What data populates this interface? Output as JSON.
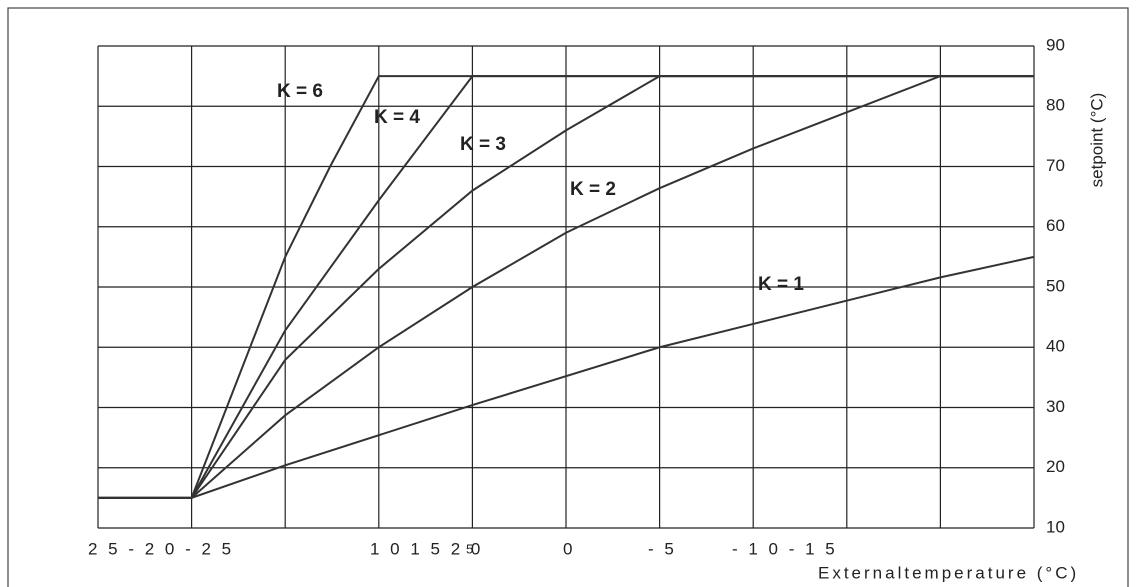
{
  "chart_data": {
    "type": "line",
    "x_label": "Externaltemperature (°C)",
    "y_label": "setpoint (°C)",
    "xlim": [
      25,
      -25
    ],
    "ylim": [
      10,
      90
    ],
    "xticks": [
      25,
      20,
      15,
      10,
      5,
      0,
      -5,
      -10,
      -15,
      -20,
      -25
    ],
    "yticks": [
      10,
      20,
      30,
      40,
      50,
      60,
      70,
      80,
      90
    ],
    "x_tick_texts": [
      "2 5 - 2 0 - 2 5",
      "1 0 1 5 2 0",
      "5",
      "0",
      "- 5",
      "- 1 0 - 1 5"
    ],
    "grid": true,
    "series": [
      {
        "name": "K = 1",
        "color": "#333333",
        "x": [
          25,
          20,
          15,
          5,
          -5,
          -20,
          -25
        ],
        "values": [
          15,
          15,
          20.4,
          30.4,
          40,
          51.6,
          55
        ]
      },
      {
        "name": "K = 2",
        "color": "#333333",
        "x": [
          25,
          20,
          15,
          10,
          5,
          0,
          -5,
          -10,
          -20,
          -25
        ],
        "values": [
          15,
          15,
          28.7,
          40,
          50,
          59,
          66.4,
          73,
          85,
          85
        ]
      },
      {
        "name": "K = 3",
        "color": "#333333",
        "x": [
          25,
          20,
          15,
          10,
          5,
          0,
          -5,
          -25
        ],
        "values": [
          15,
          15,
          37.9,
          53,
          66,
          76,
          85,
          85
        ]
      },
      {
        "name": "K = 4",
        "color": "#333333",
        "x": [
          25,
          20,
          15,
          10,
          5,
          -25
        ],
        "values": [
          15,
          15,
          42.8,
          64.4,
          85,
          85
        ]
      },
      {
        "name": "K = 6",
        "color": "#333333",
        "x": [
          25,
          20,
          15,
          12.6,
          10,
          -25
        ],
        "values": [
          15,
          15,
          55,
          70,
          85,
          85
        ]
      }
    ]
  }
}
